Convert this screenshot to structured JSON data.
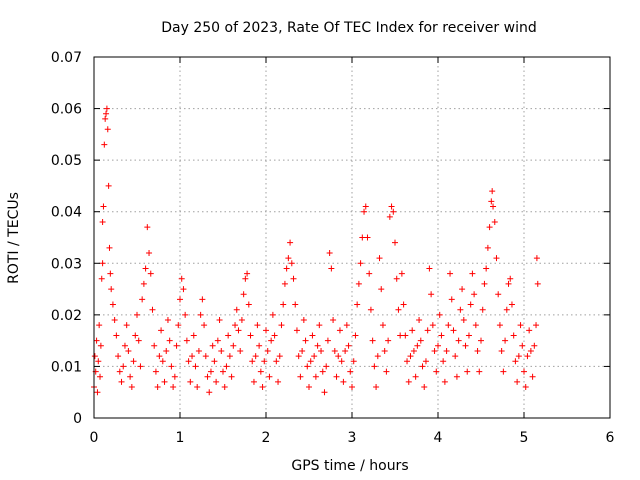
{
  "chart_data": {
    "type": "scatter",
    "title": "Day 250 of 2023, Rate Of TEC Index for receiver wind",
    "xlabel": "GPS time / hours",
    "ylabel": "ROTI / TECUs",
    "xlim": [
      0,
      6
    ],
    "ylim": [
      0,
      0.07
    ],
    "x_ticks": [
      0,
      1,
      2,
      3,
      4,
      5,
      6
    ],
    "x_tick_labels": [
      "0",
      "1",
      "2",
      "3",
      "4",
      "5",
      "6"
    ],
    "y_ticks": [
      0,
      0.01,
      0.02,
      0.03,
      0.04,
      0.05,
      0.06,
      0.07
    ],
    "y_tick_labels": [
      "0",
      "0.01",
      "0.02",
      "0.03",
      "0.04",
      "0.05",
      "0.06",
      "0.07"
    ],
    "grid": true,
    "marker": "plus",
    "color": "#ff0000",
    "series": [
      {
        "points": [
          [
            0.0,
            0.006
          ],
          [
            0.01,
            0.012
          ],
          [
            0.02,
            0.009
          ],
          [
            0.03,
            0.015
          ],
          [
            0.04,
            0.005
          ],
          [
            0.05,
            0.011
          ],
          [
            0.06,
            0.018
          ],
          [
            0.07,
            0.008
          ],
          [
            0.08,
            0.014
          ],
          [
            0.09,
            0.027
          ],
          [
            0.1,
            0.03
          ],
          [
            0.1,
            0.038
          ],
          [
            0.11,
            0.041
          ],
          [
            0.12,
            0.053
          ],
          [
            0.13,
            0.058
          ],
          [
            0.14,
            0.059
          ],
          [
            0.15,
            0.06
          ],
          [
            0.16,
            0.056
          ],
          [
            0.17,
            0.045
          ],
          [
            0.18,
            0.033
          ],
          [
            0.19,
            0.028
          ],
          [
            0.2,
            0.025
          ],
          [
            0.22,
            0.022
          ],
          [
            0.24,
            0.019
          ],
          [
            0.26,
            0.016
          ],
          [
            0.28,
            0.012
          ],
          [
            0.3,
            0.009
          ],
          [
            0.32,
            0.007
          ],
          [
            0.34,
            0.01
          ],
          [
            0.36,
            0.014
          ],
          [
            0.38,
            0.018
          ],
          [
            0.4,
            0.013
          ],
          [
            0.42,
            0.008
          ],
          [
            0.44,
            0.006
          ],
          [
            0.46,
            0.011
          ],
          [
            0.48,
            0.016
          ],
          [
            0.5,
            0.02
          ],
          [
            0.52,
            0.015
          ],
          [
            0.54,
            0.01
          ],
          [
            0.56,
            0.023
          ],
          [
            0.58,
            0.026
          ],
          [
            0.6,
            0.029
          ],
          [
            0.62,
            0.037
          ],
          [
            0.64,
            0.032
          ],
          [
            0.66,
            0.028
          ],
          [
            0.68,
            0.021
          ],
          [
            0.7,
            0.014
          ],
          [
            0.72,
            0.009
          ],
          [
            0.74,
            0.006
          ],
          [
            0.76,
            0.012
          ],
          [
            0.78,
            0.017
          ],
          [
            0.8,
            0.011
          ],
          [
            0.82,
            0.007
          ],
          [
            0.84,
            0.013
          ],
          [
            0.86,
            0.019
          ],
          [
            0.88,
            0.015
          ],
          [
            0.9,
            0.01
          ],
          [
            0.92,
            0.006
          ],
          [
            0.94,
            0.008
          ],
          [
            0.96,
            0.014
          ],
          [
            0.98,
            0.018
          ],
          [
            1.0,
            0.023
          ],
          [
            1.02,
            0.027
          ],
          [
            1.04,
            0.025
          ],
          [
            1.06,
            0.02
          ],
          [
            1.08,
            0.015
          ],
          [
            1.1,
            0.011
          ],
          [
            1.12,
            0.007
          ],
          [
            1.14,
            0.012
          ],
          [
            1.16,
            0.016
          ],
          [
            1.18,
            0.01
          ],
          [
            1.2,
            0.006
          ],
          [
            1.22,
            0.013
          ],
          [
            1.24,
            0.02
          ],
          [
            1.26,
            0.023
          ],
          [
            1.28,
            0.018
          ],
          [
            1.3,
            0.012
          ],
          [
            1.32,
            0.008
          ],
          [
            1.34,
            0.005
          ],
          [
            1.36,
            0.009
          ],
          [
            1.38,
            0.014
          ],
          [
            1.4,
            0.011
          ],
          [
            1.42,
            0.007
          ],
          [
            1.44,
            0.015
          ],
          [
            1.46,
            0.019
          ],
          [
            1.48,
            0.013
          ],
          [
            1.5,
            0.009
          ],
          [
            1.52,
            0.006
          ],
          [
            1.54,
            0.01
          ],
          [
            1.56,
            0.016
          ],
          [
            1.58,
            0.012
          ],
          [
            1.6,
            0.008
          ],
          [
            1.62,
            0.014
          ],
          [
            1.64,
            0.018
          ],
          [
            1.66,
            0.021
          ],
          [
            1.68,
            0.017
          ],
          [
            1.7,
            0.013
          ],
          [
            1.72,
            0.019
          ],
          [
            1.74,
            0.024
          ],
          [
            1.76,
            0.027
          ],
          [
            1.78,
            0.028
          ],
          [
            1.8,
            0.022
          ],
          [
            1.82,
            0.016
          ],
          [
            1.84,
            0.011
          ],
          [
            1.86,
            0.007
          ],
          [
            1.88,
            0.012
          ],
          [
            1.9,
            0.018
          ],
          [
            1.92,
            0.014
          ],
          [
            1.94,
            0.009
          ],
          [
            1.96,
            0.006
          ],
          [
            1.98,
            0.011
          ],
          [
            2.0,
            0.017
          ],
          [
            2.02,
            0.013
          ],
          [
            2.04,
            0.008
          ],
          [
            2.06,
            0.015
          ],
          [
            2.08,
            0.02
          ],
          [
            2.1,
            0.016
          ],
          [
            2.12,
            0.011
          ],
          [
            2.14,
            0.007
          ],
          [
            2.16,
            0.012
          ],
          [
            2.18,
            0.018
          ],
          [
            2.2,
            0.022
          ],
          [
            2.22,
            0.026
          ],
          [
            2.24,
            0.029
          ],
          [
            2.26,
            0.031
          ],
          [
            2.28,
            0.034
          ],
          [
            2.3,
            0.03
          ],
          [
            2.32,
            0.027
          ],
          [
            2.34,
            0.022
          ],
          [
            2.36,
            0.017
          ],
          [
            2.38,
            0.012
          ],
          [
            2.4,
            0.008
          ],
          [
            2.42,
            0.013
          ],
          [
            2.44,
            0.019
          ],
          [
            2.46,
            0.015
          ],
          [
            2.48,
            0.01
          ],
          [
            2.5,
            0.006
          ],
          [
            2.52,
            0.011
          ],
          [
            2.54,
            0.016
          ],
          [
            2.56,
            0.012
          ],
          [
            2.58,
            0.008
          ],
          [
            2.6,
            0.014
          ],
          [
            2.62,
            0.018
          ],
          [
            2.64,
            0.013
          ],
          [
            2.66,
            0.009
          ],
          [
            2.68,
            0.005
          ],
          [
            2.7,
            0.01
          ],
          [
            2.72,
            0.015
          ],
          [
            2.74,
            0.032
          ],
          [
            2.76,
            0.029
          ],
          [
            2.78,
            0.019
          ],
          [
            2.8,
            0.013
          ],
          [
            2.82,
            0.008
          ],
          [
            2.84,
            0.012
          ],
          [
            2.86,
            0.017
          ],
          [
            2.88,
            0.011
          ],
          [
            2.9,
            0.007
          ],
          [
            2.92,
            0.013
          ],
          [
            2.94,
            0.018
          ],
          [
            2.96,
            0.014
          ],
          [
            2.98,
            0.009
          ],
          [
            3.0,
            0.006
          ],
          [
            3.02,
            0.011
          ],
          [
            3.04,
            0.016
          ],
          [
            3.06,
            0.022
          ],
          [
            3.08,
            0.026
          ],
          [
            3.1,
            0.03
          ],
          [
            3.12,
            0.035
          ],
          [
            3.14,
            0.04
          ],
          [
            3.16,
            0.041
          ],
          [
            3.18,
            0.035
          ],
          [
            3.2,
            0.028
          ],
          [
            3.22,
            0.021
          ],
          [
            3.24,
            0.015
          ],
          [
            3.26,
            0.01
          ],
          [
            3.28,
            0.006
          ],
          [
            3.3,
            0.012
          ],
          [
            3.32,
            0.031
          ],
          [
            3.34,
            0.025
          ],
          [
            3.36,
            0.018
          ],
          [
            3.38,
            0.013
          ],
          [
            3.4,
            0.009
          ],
          [
            3.42,
            0.015
          ],
          [
            3.44,
            0.039
          ],
          [
            3.46,
            0.041
          ],
          [
            3.48,
            0.04
          ],
          [
            3.5,
            0.034
          ],
          [
            3.52,
            0.027
          ],
          [
            3.54,
            0.021
          ],
          [
            3.56,
            0.016
          ],
          [
            3.58,
            0.028
          ],
          [
            3.6,
            0.022
          ],
          [
            3.62,
            0.016
          ],
          [
            3.64,
            0.011
          ],
          [
            3.66,
            0.007
          ],
          [
            3.68,
            0.012
          ],
          [
            3.7,
            0.017
          ],
          [
            3.72,
            0.013
          ],
          [
            3.74,
            0.008
          ],
          [
            3.76,
            0.014
          ],
          [
            3.78,
            0.019
          ],
          [
            3.8,
            0.015
          ],
          [
            3.82,
            0.01
          ],
          [
            3.84,
            0.006
          ],
          [
            3.86,
            0.011
          ],
          [
            3.88,
            0.017
          ],
          [
            3.9,
            0.029
          ],
          [
            3.92,
            0.024
          ],
          [
            3.94,
            0.018
          ],
          [
            3.96,
            0.013
          ],
          [
            3.98,
            0.009
          ],
          [
            4.0,
            0.014
          ],
          [
            4.02,
            0.02
          ],
          [
            4.04,
            0.016
          ],
          [
            4.06,
            0.011
          ],
          [
            4.08,
            0.007
          ],
          [
            4.1,
            0.013
          ],
          [
            4.12,
            0.018
          ],
          [
            4.14,
            0.028
          ],
          [
            4.16,
            0.023
          ],
          [
            4.18,
            0.017
          ],
          [
            4.2,
            0.012
          ],
          [
            4.22,
            0.008
          ],
          [
            4.24,
            0.015
          ],
          [
            4.26,
            0.021
          ],
          [
            4.28,
            0.025
          ],
          [
            4.3,
            0.019
          ],
          [
            4.32,
            0.014
          ],
          [
            4.34,
            0.009
          ],
          [
            4.36,
            0.016
          ],
          [
            4.38,
            0.022
          ],
          [
            4.4,
            0.028
          ],
          [
            4.42,
            0.024
          ],
          [
            4.44,
            0.018
          ],
          [
            4.46,
            0.013
          ],
          [
            4.48,
            0.009
          ],
          [
            4.5,
            0.015
          ],
          [
            4.52,
            0.021
          ],
          [
            4.54,
            0.026
          ],
          [
            4.56,
            0.029
          ],
          [
            4.58,
            0.033
          ],
          [
            4.6,
            0.037
          ],
          [
            4.62,
            0.042
          ],
          [
            4.63,
            0.044
          ],
          [
            4.64,
            0.041
          ],
          [
            4.66,
            0.038
          ],
          [
            4.68,
            0.031
          ],
          [
            4.7,
            0.024
          ],
          [
            4.72,
            0.018
          ],
          [
            4.74,
            0.013
          ],
          [
            4.76,
            0.009
          ],
          [
            4.78,
            0.015
          ],
          [
            4.8,
            0.021
          ],
          [
            4.82,
            0.026
          ],
          [
            4.84,
            0.027
          ],
          [
            4.86,
            0.022
          ],
          [
            4.88,
            0.016
          ],
          [
            4.9,
            0.011
          ],
          [
            4.92,
            0.007
          ],
          [
            4.94,
            0.012
          ],
          [
            4.96,
            0.018
          ],
          [
            4.98,
            0.014
          ],
          [
            5.0,
            0.009
          ],
          [
            5.02,
            0.006
          ],
          [
            5.04,
            0.012
          ],
          [
            5.06,
            0.017
          ],
          [
            5.08,
            0.013
          ],
          [
            5.1,
            0.008
          ],
          [
            5.12,
            0.014
          ],
          [
            5.14,
            0.018
          ],
          [
            5.15,
            0.031
          ],
          [
            5.16,
            0.026
          ]
        ]
      }
    ]
  }
}
